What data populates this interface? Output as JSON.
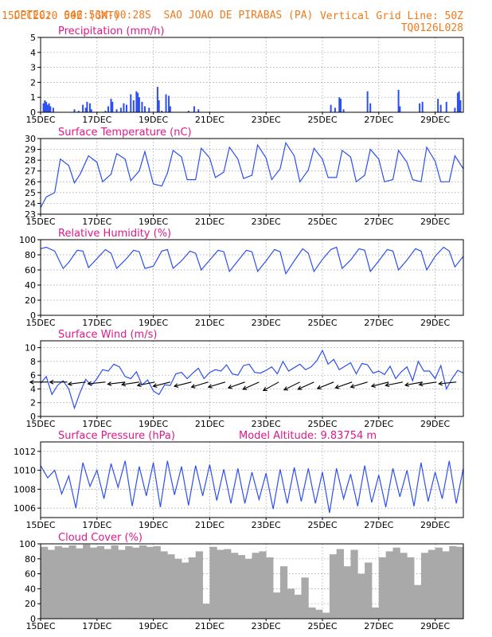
{
  "header": {
    "source": "CPTEC:",
    "location_coords": "046:53W-00:28S",
    "location_name": "SAO JOAO DE PIRABAS (PA)",
    "date": "15DEC2020 50Z (GMT)",
    "grid_note": "Vertical Grid Line: 50Z",
    "code": "TQ0126L028"
  },
  "colors": {
    "header": "#f07a1a",
    "title": "#e0188a",
    "series": "#2d4ff0",
    "cloud": "#a9a9a9",
    "arrow": "#000000"
  },
  "x_axis": {
    "tick_labels": [
      "15DEC",
      "17DEC",
      "19DEC",
      "21DEC",
      "23DEC",
      "25DEC",
      "27DEC",
      "29DEC"
    ],
    "tick_days": [
      15,
      17,
      19,
      21,
      23,
      25,
      27,
      29
    ],
    "range_days": [
      15,
      30
    ],
    "hidden_label": "202"
  },
  "chart_data": [
    {
      "type": "bar",
      "title": "Precipitation (mm/h)",
      "ylim": [
        0,
        5
      ],
      "yticks": [
        0,
        1,
        2,
        3,
        4,
        5
      ],
      "x_days": [
        15.1,
        15.15,
        15.2,
        15.25,
        15.3,
        15.35,
        15.45,
        16.2,
        16.35,
        16.5,
        16.6,
        16.65,
        16.75,
        16.8,
        17.3,
        17.4,
        17.5,
        17.55,
        17.7,
        17.85,
        17.95,
        18.05,
        18.2,
        18.3,
        18.4,
        18.45,
        18.5,
        18.6,
        18.7,
        18.85,
        19.15,
        19.2,
        19.3,
        19.45,
        19.55,
        19.6,
        20.25,
        20.45,
        20.6,
        25.3,
        25.45,
        25.6,
        25.65,
        25.75,
        26.6,
        26.7,
        27.7,
        27.75,
        28.45,
        28.55,
        29.1,
        29.2,
        29.4,
        29.7,
        29.8,
        29.85,
        29.9
      ],
      "values": [
        0.6,
        0.8,
        0.7,
        0.5,
        0.6,
        0.4,
        0.3,
        0.2,
        0.1,
        0.5,
        0.3,
        0.7,
        0.6,
        0.2,
        0.1,
        0.4,
        0.9,
        0.7,
        0.2,
        0.3,
        0.6,
        0.5,
        1.2,
        0.8,
        1.4,
        1.3,
        1.0,
        0.7,
        0.4,
        0.3,
        1.7,
        0.8,
        0.1,
        1.2,
        1.1,
        0.4,
        0.1,
        0.4,
        0.2,
        0.5,
        0.3,
        1.0,
        0.9,
        0.2,
        1.4,
        0.6,
        1.5,
        0.4,
        0.6,
        0.7,
        0.9,
        0.5,
        0.7,
        0.3,
        1.3,
        1.4,
        0.8
      ]
    },
    {
      "type": "line",
      "title": "Surface Temperature (nC)",
      "ylim": [
        23,
        30
      ],
      "yticks": [
        23,
        24,
        25,
        26,
        27,
        28,
        29,
        30
      ],
      "x_days": [
        15.0,
        15.2,
        15.5,
        15.7,
        16.0,
        16.2,
        16.4,
        16.7,
        17.0,
        17.2,
        17.5,
        17.7,
        18.0,
        18.2,
        18.5,
        18.7,
        19.0,
        19.3,
        19.5,
        19.7,
        20.0,
        20.2,
        20.5,
        20.7,
        21.0,
        21.2,
        21.5,
        21.7,
        22.0,
        22.2,
        22.5,
        22.7,
        23.0,
        23.2,
        23.5,
        23.7,
        24.0,
        24.2,
        24.5,
        24.7,
        25.0,
        25.2,
        25.5,
        25.7,
        26.0,
        26.2,
        26.5,
        26.7,
        27.0,
        27.2,
        27.5,
        27.7,
        28.0,
        28.2,
        28.5,
        28.7,
        29.0,
        29.2,
        29.5,
        29.7,
        30.0
      ],
      "values": [
        23.6,
        24.6,
        25.0,
        28.1,
        27.5,
        25.9,
        26.7,
        28.4,
        27.8,
        26.0,
        26.7,
        28.6,
        28.1,
        26.1,
        27.0,
        28.8,
        25.8,
        25.6,
        26.8,
        28.9,
        28.3,
        26.2,
        26.2,
        29.1,
        28.2,
        26.4,
        26.9,
        29.2,
        28.1,
        26.3,
        26.6,
        29.4,
        28.2,
        26.2,
        27.2,
        29.6,
        28.4,
        26.0,
        27.1,
        29.1,
        28.1,
        26.4,
        26.4,
        28.9,
        28.3,
        26.0,
        26.6,
        29.0,
        28.1,
        26.0,
        26.2,
        28.9,
        27.8,
        26.2,
        26.0,
        29.2,
        27.9,
        26.0,
        26.0,
        28.4,
        27.2
      ]
    },
    {
      "type": "line",
      "title": "Relative Humidity (%)",
      "ylim": [
        0,
        100
      ],
      "yticks": [
        0,
        20,
        40,
        60,
        80,
        100
      ],
      "x_days": [
        15.0,
        15.2,
        15.5,
        15.8,
        16.0,
        16.3,
        16.5,
        16.7,
        17.0,
        17.3,
        17.5,
        17.7,
        18.0,
        18.3,
        18.5,
        18.7,
        19.0,
        19.3,
        19.5,
        19.7,
        20.0,
        20.3,
        20.5,
        20.7,
        21.0,
        21.3,
        21.5,
        21.7,
        22.0,
        22.3,
        22.5,
        22.7,
        23.0,
        23.3,
        23.5,
        23.7,
        24.0,
        24.3,
        24.5,
        24.7,
        25.0,
        25.3,
        25.5,
        25.7,
        26.0,
        26.3,
        26.5,
        26.7,
        27.0,
        27.3,
        27.5,
        27.7,
        28.0,
        28.3,
        28.5,
        28.7,
        29.0,
        29.3,
        29.5,
        29.7,
        30.0
      ],
      "values": [
        88,
        90,
        85,
        62,
        70,
        86,
        85,
        63,
        75,
        87,
        82,
        62,
        73,
        86,
        84,
        62,
        65,
        85,
        87,
        62,
        72,
        85,
        82,
        60,
        73,
        86,
        84,
        58,
        72,
        86,
        84,
        58,
        72,
        87,
        84,
        55,
        72,
        88,
        82,
        58,
        74,
        87,
        90,
        62,
        73,
        88,
        86,
        58,
        72,
        87,
        85,
        60,
        73,
        88,
        85,
        60,
        78,
        90,
        85,
        64,
        78
      ]
    },
    {
      "type": "line",
      "title": "Surface Wind (m/s)",
      "ylim": [
        0,
        11
      ],
      "yticks": [
        0,
        2,
        4,
        6,
        8,
        10
      ],
      "x_days": [
        15.0,
        15.2,
        15.4,
        15.6,
        15.8,
        16.0,
        16.2,
        16.4,
        16.6,
        16.8,
        17.0,
        17.2,
        17.4,
        17.6,
        17.8,
        18.0,
        18.2,
        18.4,
        18.6,
        18.8,
        19.0,
        19.2,
        19.4,
        19.6,
        19.8,
        20.0,
        20.2,
        20.4,
        20.6,
        20.8,
        21.0,
        21.2,
        21.4,
        21.6,
        21.8,
        22.0,
        22.2,
        22.4,
        22.6,
        22.8,
        23.0,
        23.2,
        23.4,
        23.6,
        23.8,
        24.0,
        24.2,
        24.4,
        24.6,
        24.8,
        25.0,
        25.2,
        25.4,
        25.6,
        25.8,
        26.0,
        26.2,
        26.4,
        26.6,
        26.8,
        27.0,
        27.2,
        27.4,
        27.6,
        27.8,
        28.0,
        28.2,
        28.4,
        28.6,
        28.8,
        29.0,
        29.2,
        29.4,
        29.6,
        29.8,
        30.0
      ],
      "values": [
        4.8,
        5.8,
        3.2,
        4.5,
        5.2,
        4.0,
        1.2,
        3.5,
        5.4,
        4.5,
        5.5,
        6.8,
        6.6,
        7.6,
        7.2,
        5.8,
        5.5,
        6.5,
        4.6,
        5.3,
        3.7,
        3.2,
        4.6,
        4.5,
        6.2,
        6.4,
        5.5,
        6.3,
        7.0,
        5.5,
        6.4,
        6.8,
        6.6,
        7.5,
        6.2,
        6.0,
        7.4,
        7.6,
        6.4,
        6.3,
        6.7,
        7.2,
        6.2,
        8.0,
        6.6,
        7.1,
        7.6,
        6.8,
        7.2,
        8.1,
        9.6,
        7.6,
        8.3,
        6.8,
        7.3,
        7.8,
        6.2,
        7.7,
        7.5,
        6.3,
        6.6,
        6.1,
        7.3,
        5.5,
        6.5,
        7.2,
        5.2,
        8.0,
        6.6,
        6.6,
        5.5,
        7.4,
        4.0,
        5.5,
        6.7,
        6.3
      ]
    },
    {
      "type": "line",
      "title": "Surface Pressure (hPa)",
      "subtitle": "Model Altitude: 9.83754 m",
      "ylim": [
        1005,
        1013
      ],
      "yticks": [
        1006,
        1008,
        1010,
        1012
      ],
      "x_days": [
        15.0,
        15.25,
        15.5,
        15.75,
        16.0,
        16.25,
        16.5,
        16.75,
        17.0,
        17.25,
        17.5,
        17.75,
        18.0,
        18.25,
        18.5,
        18.75,
        19.0,
        19.25,
        19.5,
        19.75,
        20.0,
        20.25,
        20.5,
        20.75,
        21.0,
        21.25,
        21.5,
        21.75,
        22.0,
        22.25,
        22.5,
        22.75,
        23.0,
        23.25,
        23.5,
        23.75,
        24.0,
        24.25,
        24.5,
        24.75,
        25.0,
        25.25,
        25.5,
        25.75,
        26.0,
        26.25,
        26.5,
        26.75,
        27.0,
        27.25,
        27.5,
        27.75,
        28.0,
        28.25,
        28.5,
        28.75,
        29.0,
        29.25,
        29.5,
        29.75,
        30.0
      ],
      "values": [
        1010.5,
        1009.2,
        1010.0,
        1007.5,
        1009.4,
        1006.0,
        1010.8,
        1008.3,
        1010.0,
        1007.0,
        1010.7,
        1008.2,
        1011.0,
        1006.2,
        1010.4,
        1007.3,
        1010.8,
        1006.1,
        1011.0,
        1007.4,
        1010.4,
        1006.3,
        1010.5,
        1007.3,
        1010.6,
        1006.8,
        1010.1,
        1006.5,
        1010.2,
        1006.5,
        1009.8,
        1006.9,
        1009.7,
        1005.9,
        1010.1,
        1006.5,
        1010.3,
        1006.7,
        1010.2,
        1006.5,
        1009.8,
        1005.5,
        1010.2,
        1007.0,
        1009.6,
        1006.2,
        1010.5,
        1006.6,
        1009.5,
        1006.1,
        1010.2,
        1007.2,
        1010.0,
        1006.2,
        1010.8,
        1006.7,
        1009.8,
        1007.0,
        1011.0,
        1006.5,
        1010.2
      ]
    },
    {
      "type": "bar",
      "title": "Cloud Cover (%)",
      "ylim": [
        0,
        100
      ],
      "yticks": [
        0,
        20,
        40,
        60,
        80,
        100
      ],
      "x_days": [
        15.0,
        15.25,
        15.5,
        15.75,
        16.0,
        16.25,
        16.5,
        16.75,
        17.0,
        17.25,
        17.5,
        17.75,
        18.0,
        18.25,
        18.5,
        18.75,
        19.0,
        19.25,
        19.5,
        19.75,
        20.0,
        20.25,
        20.5,
        20.75,
        21.0,
        21.25,
        21.5,
        21.75,
        22.0,
        22.25,
        22.5,
        22.75,
        23.0,
        23.25,
        23.5,
        23.75,
        24.0,
        24.25,
        24.5,
        24.75,
        25.0,
        25.25,
        25.5,
        25.75,
        26.0,
        26.25,
        26.5,
        26.75,
        27.0,
        27.25,
        27.5,
        27.75,
        28.0,
        28.25,
        28.5,
        28.75,
        29.0,
        29.25,
        29.5,
        29.75
      ],
      "values": [
        96,
        92,
        97,
        95,
        98,
        94,
        99,
        95,
        97,
        93,
        98,
        92,
        97,
        95,
        98,
        96,
        97,
        90,
        86,
        80,
        75,
        82,
        90,
        20,
        96,
        92,
        93,
        88,
        85,
        80,
        88,
        90,
        82,
        35,
        70,
        40,
        32,
        55,
        15,
        12,
        8,
        86,
        93,
        70,
        92,
        60,
        75,
        15,
        82,
        90,
        95,
        88,
        82,
        45,
        88,
        92,
        95,
        90,
        97,
        96
      ]
    }
  ],
  "wind_arrows": {
    "x_days": [
      15.25,
      15.95,
      16.6,
      17.3,
      18.0,
      18.5,
      19.05,
      19.6,
      20.35,
      20.95,
      21.55,
      22.25,
      22.75,
      23.45,
      24.2,
      24.7,
      25.4,
      26.05,
      26.6,
      27.35,
      27.85,
      28.55,
      29.05,
      29.75
    ],
    "dx": [
      -1,
      -1,
      -1,
      -1,
      -1,
      -1,
      -1,
      -1,
      -1,
      -1,
      -1,
      -1,
      -1,
      -1,
      -1,
      -1,
      -1,
      -1,
      -1,
      -1,
      -1,
      -1,
      -1,
      -1
    ],
    "dy": [
      0,
      0,
      0.12,
      0.1,
      0.12,
      0.15,
      0.2,
      0.25,
      0.25,
      0.3,
      0.3,
      0.35,
      0.45,
      0.55,
      0.5,
      0.45,
      0.4,
      0.35,
      0.3,
      0.25,
      0.2,
      0.18,
      0.15,
      0.1
    ]
  }
}
